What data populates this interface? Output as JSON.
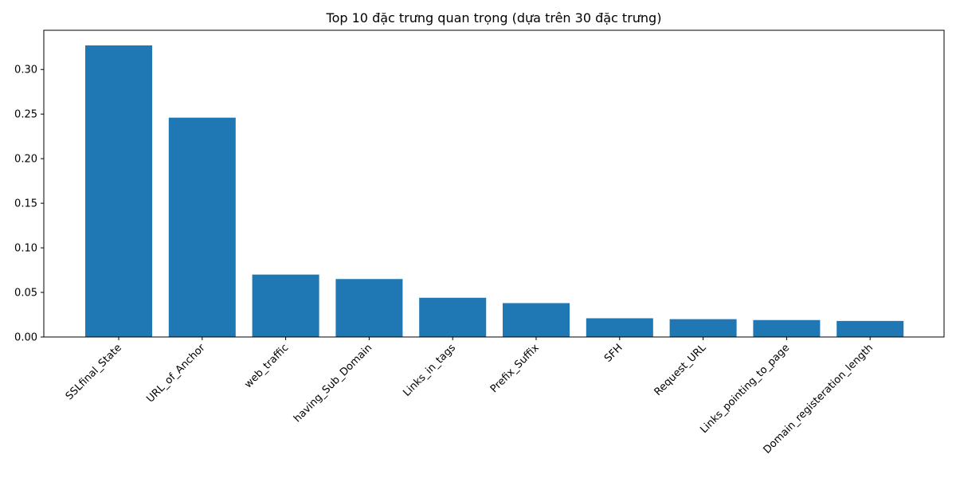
{
  "chart_data": {
    "type": "bar",
    "title": "Top 10 đặc trưng quan trọng (dựa trên 30 đặc trưng)",
    "xlabel": "",
    "ylabel": "",
    "categories": [
      "SSLfinal_State",
      "URL_of_Anchor",
      "web_traffic",
      "having_Sub_Domain",
      "Links_in_tags",
      "Prefix_Suffix",
      "SFH",
      "Request_URL",
      "Links_pointing_to_page",
      "Domain_registeration_length"
    ],
    "values": [
      0.327,
      0.246,
      0.07,
      0.065,
      0.044,
      0.038,
      0.021,
      0.02,
      0.019,
      0.018
    ],
    "ylim": [
      0,
      0.344
    ],
    "yticks": [
      0.0,
      0.05,
      0.1,
      0.15,
      0.2,
      0.25,
      0.3
    ],
    "ytick_labels": [
      "0.00",
      "0.05",
      "0.10",
      "0.15",
      "0.20",
      "0.25",
      "0.30"
    ],
    "bar_color": "#1f77b4",
    "grid": false,
    "legend": "none"
  }
}
